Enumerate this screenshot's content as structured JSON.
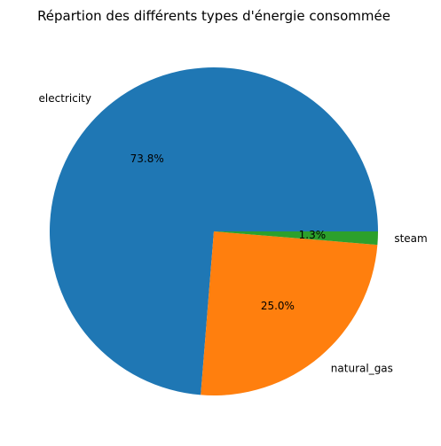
{
  "chart_data": {
    "type": "pie",
    "title": "Répartion des différents types d'énergie consommée",
    "slices": [
      {
        "label": "electricity",
        "value": 73.8,
        "pct_label": "73.8%",
        "color": "#1f77b4"
      },
      {
        "label": "natural_gas",
        "value": 25.0,
        "pct_label": "25.0%",
        "color": "#ff7f0e"
      },
      {
        "label": "steam",
        "value": 1.3,
        "pct_label": "1.3%",
        "color": "#2ca02c"
      }
    ],
    "start_angle_deg": 0,
    "direction": "counterclockwise",
    "legend": "none"
  }
}
